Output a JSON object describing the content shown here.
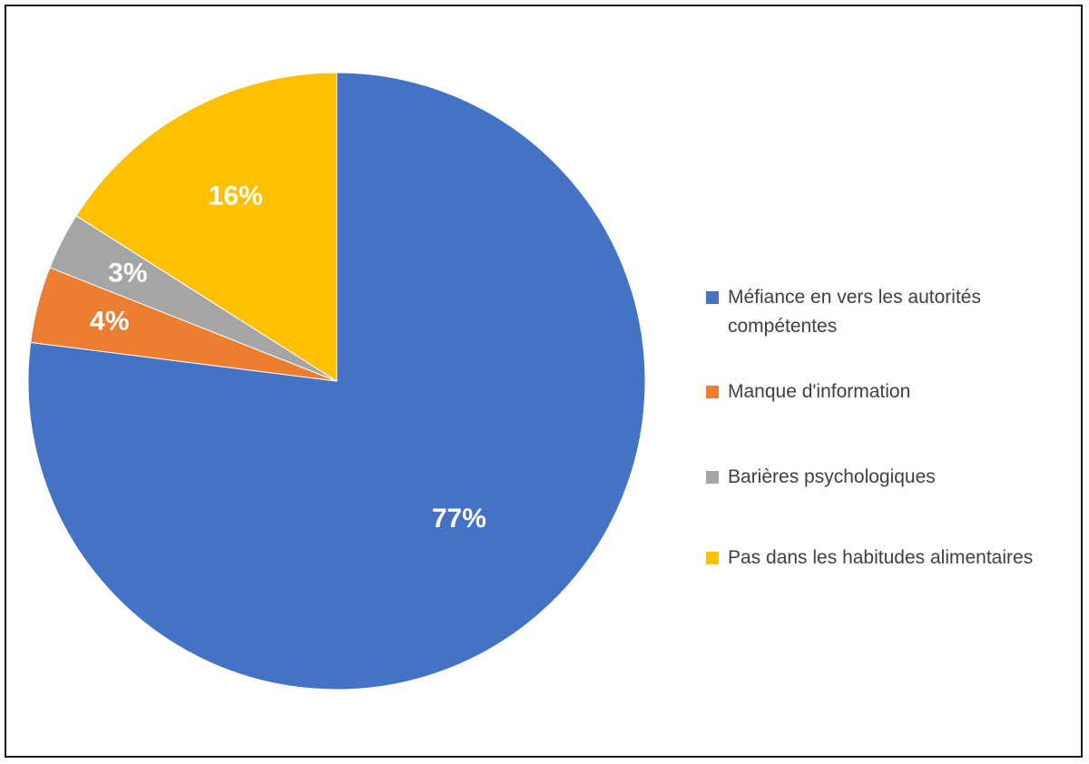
{
  "chart_data": {
    "type": "pie",
    "slices": [
      {
        "label": "Méfiance en vers les autorités compétentes",
        "value": 77,
        "display": "77%",
        "color": "#4472c4"
      },
      {
        "label": "Manque d'information",
        "value": 4,
        "display": "4%",
        "color": "#ed7d31"
      },
      {
        "label": "Barières psychologiques",
        "value": 3,
        "display": "3%",
        "color": "#a5a5a5"
      },
      {
        "label": "Pas dans les habitudes alimentaires",
        "value": 16,
        "display": "16%",
        "color": "#ffc000"
      }
    ],
    "legend_position": "right"
  }
}
